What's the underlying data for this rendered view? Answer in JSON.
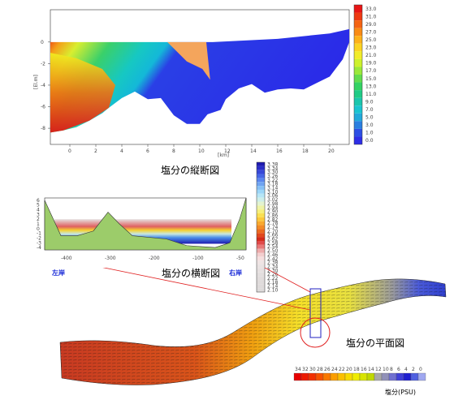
{
  "captions": {
    "longitudinal": "塩分の縦断図",
    "cross": "塩分の横断図",
    "plan": "塩分の平面図",
    "left_bank": "左岸",
    "right_bank": "右岸",
    "unit": "塩分(PSU)"
  },
  "chart_data": [
    {
      "type": "heatmap",
      "name": "longitudinal-section",
      "xlabel": "[km]",
      "ylabel": "[El.m]",
      "x_ticks": [
        "0",
        "2",
        "4",
        "6",
        "8",
        "10",
        "12",
        "14",
        "16",
        "18",
        "20"
      ],
      "y_ticks": [
        "0",
        "-2",
        "-4",
        "-6",
        "-8"
      ],
      "xlim": [
        -1.5,
        21.5
      ],
      "ylim": [
        -9.5,
        3
      ],
      "colorbar_ticks": [
        "33.0",
        "31.0",
        "29.0",
        "27.0",
        "25.0",
        "23.0",
        "21.0",
        "19.0",
        "17.0",
        "15.0",
        "13.0",
        "11.0",
        "9.0",
        "7.0",
        "5.0",
        "3.0",
        "1.0",
        "0.0"
      ],
      "colorbar_colors": [
        "#e81515",
        "#ee3a12",
        "#f46312",
        "#f98b14",
        "#fdb119",
        "#fbd321",
        "#f1ec2a",
        "#cdf12c",
        "#9ae83a",
        "#62dc4e",
        "#34d263",
        "#1fcb86",
        "#1bc6ad",
        "#1ac4d0",
        "#22a9da",
        "#2a7fe0",
        "#2d4fe4",
        "#2e2ee6"
      ],
      "bottom_profile": [
        [
          -1.5,
          -8.4
        ],
        [
          -0.5,
          -8.2
        ],
        [
          0.5,
          -7.9
        ],
        [
          1.5,
          -7.3
        ],
        [
          2.5,
          -6.6
        ],
        [
          3,
          -6.1
        ],
        [
          4,
          -5.2
        ],
        [
          5,
          -4.6
        ],
        [
          6,
          -5.3
        ],
        [
          7,
          -5.2
        ],
        [
          8,
          -6.8
        ],
        [
          9,
          -7.6
        ],
        [
          10,
          -7.6
        ],
        [
          10.6,
          -6.7
        ],
        [
          11.6,
          -6.3
        ],
        [
          12,
          -5.3
        ],
        [
          13,
          -4.3
        ],
        [
          14,
          -3.9
        ],
        [
          15,
          -4.7
        ],
        [
          16,
          -4.4
        ],
        [
          17,
          -4.3
        ],
        [
          18,
          -4.4
        ],
        [
          19,
          -3.8
        ],
        [
          20,
          -3.2
        ],
        [
          21,
          -1.6
        ],
        [
          21.5,
          0
        ]
      ]
    },
    {
      "type": "heatmap",
      "name": "cross-section",
      "x_ticks": [
        "-400",
        "-300",
        "-200",
        "-100",
        "-50"
      ],
      "y_ticks": [
        "6",
        "5",
        "4",
        "3",
        "2",
        "1",
        "0",
        "-1",
        "-2",
        "-3",
        "-4"
      ],
      "ylim": [
        -4.5,
        6.5
      ],
      "colorbar_ticks": [
        "3.38",
        "3.34",
        "3.30",
        "3.26",
        "3.22",
        "3.18",
        "3.14",
        "3.10",
        "3.06",
        "3.02",
        "2.98",
        "2.94",
        "2.90",
        "2.86",
        "2.82",
        "2.78",
        "2.74",
        "2.70",
        "2.66",
        "2.62",
        "2.58",
        "2.54",
        "2.50",
        "2.46",
        "2.42",
        "2.38",
        "2.34",
        "2.30",
        "2.26",
        "2.22",
        "2.18",
        "2.14",
        "2.10"
      ],
      "colorbar_colors": [
        "#1e1ab0",
        "#2a2ec8",
        "#3748d8",
        "#4666e6",
        "#5a86ee",
        "#70a4f2",
        "#86c0f6",
        "#9cd6f8",
        "#b6e6f6",
        "#cdeee9",
        "#e2f3d0",
        "#eef3a6",
        "#f6ef7a",
        "#fae050",
        "#fcc83a",
        "#f9aa2e",
        "#f48b26",
        "#ec6a1f",
        "#e2481a",
        "#d52a18",
        "#e14a4a",
        "#e87878",
        "#eeabab",
        "#f3cece",
        "#f5dede",
        "#efe4e4",
        "#e9e2e2",
        "#e6e0e0",
        "#e3dede",
        "#e1dcdc",
        "#dfdbdb",
        "#dedada",
        "#dddada"
      ]
    },
    {
      "type": "heatmap",
      "name": "plan-view",
      "colorbar_ticks": [
        "34",
        "32",
        "30",
        "28",
        "26",
        "24",
        "22",
        "20",
        "18",
        "16",
        "14",
        "12",
        "10",
        "8",
        "6",
        "4",
        "2",
        "0"
      ],
      "colorbar_colors": [
        "#e60000",
        "#ec1a00",
        "#f23000",
        "#f65200",
        "#f97800",
        "#fb9e00",
        "#fbc000",
        "#f7da00",
        "#efec00",
        "#d8e400",
        "#c0d800",
        "#a8a8a8",
        "#9090b8",
        "#7070d0",
        "#4040d8",
        "#2020d0",
        "#5060e0",
        "#a0a8f0"
      ]
    }
  ]
}
